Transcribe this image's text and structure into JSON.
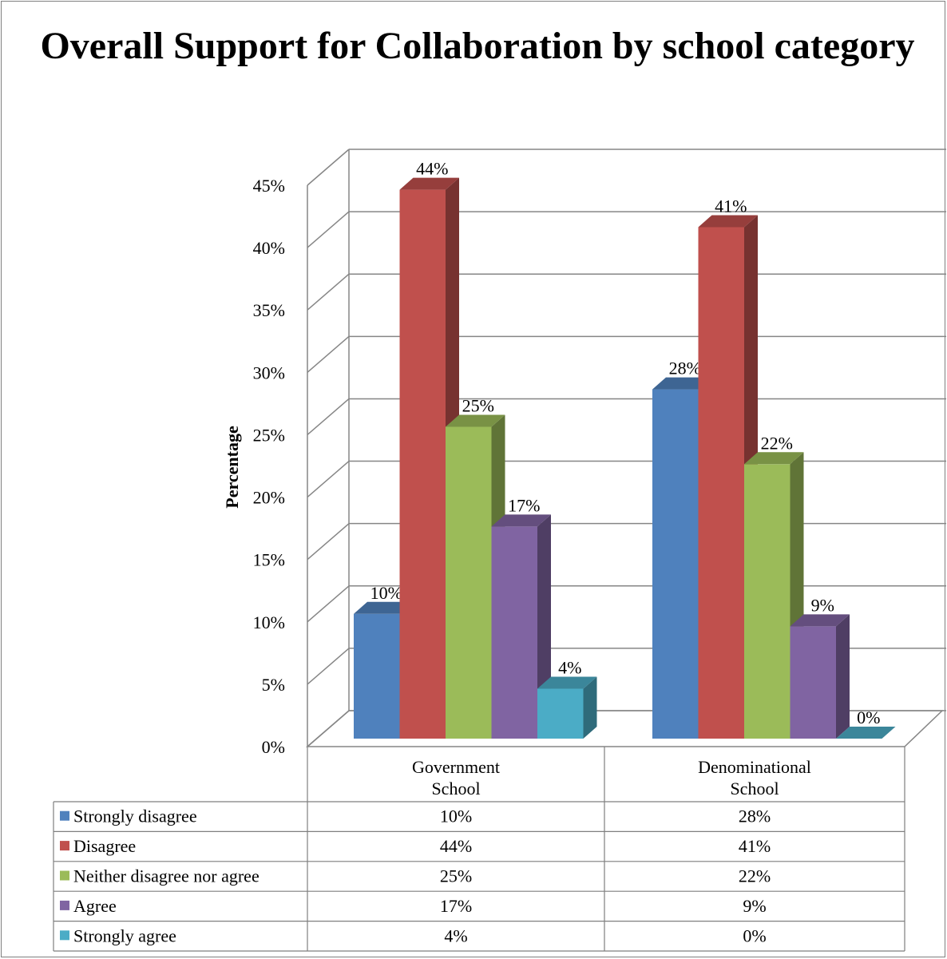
{
  "chart_data": {
    "type": "bar",
    "title": "Overall Support for Collaboration by school category",
    "ylabel": "Percentage",
    "xlabel": "",
    "ylim": [
      0,
      45
    ],
    "yticks": [
      "0%",
      "5%",
      "10%",
      "15%",
      "20%",
      "25%",
      "30%",
      "35%",
      "40%",
      "45%"
    ],
    "categories": [
      "Government School",
      "Denominational School"
    ],
    "category_lines": [
      [
        "Government",
        "School"
      ],
      [
        "Denominational",
        "School"
      ]
    ],
    "series": [
      {
        "name": "Strongly disagree",
        "values": [
          10,
          28
        ],
        "labels": [
          "10%",
          "28%"
        ],
        "color": "#4f81bd"
      },
      {
        "name": "Disagree",
        "values": [
          44,
          41
        ],
        "labels": [
          "44%",
          "41%"
        ],
        "color": "#c0504d"
      },
      {
        "name": "Neither disagree nor agree",
        "values": [
          25,
          22
        ],
        "labels": [
          "25%",
          "22%"
        ],
        "color": "#9bbb59"
      },
      {
        "name": "Agree",
        "values": [
          17,
          9
        ],
        "labels": [
          "17%",
          "9%"
        ],
        "color": "#8064a2"
      },
      {
        "name": "Strongly agree",
        "values": [
          4,
          0
        ],
        "labels": [
          "4%",
          "0%"
        ],
        "color": "#4bacc6"
      }
    ],
    "data_table": true,
    "grid": true,
    "style": "3d-clustered-column"
  }
}
